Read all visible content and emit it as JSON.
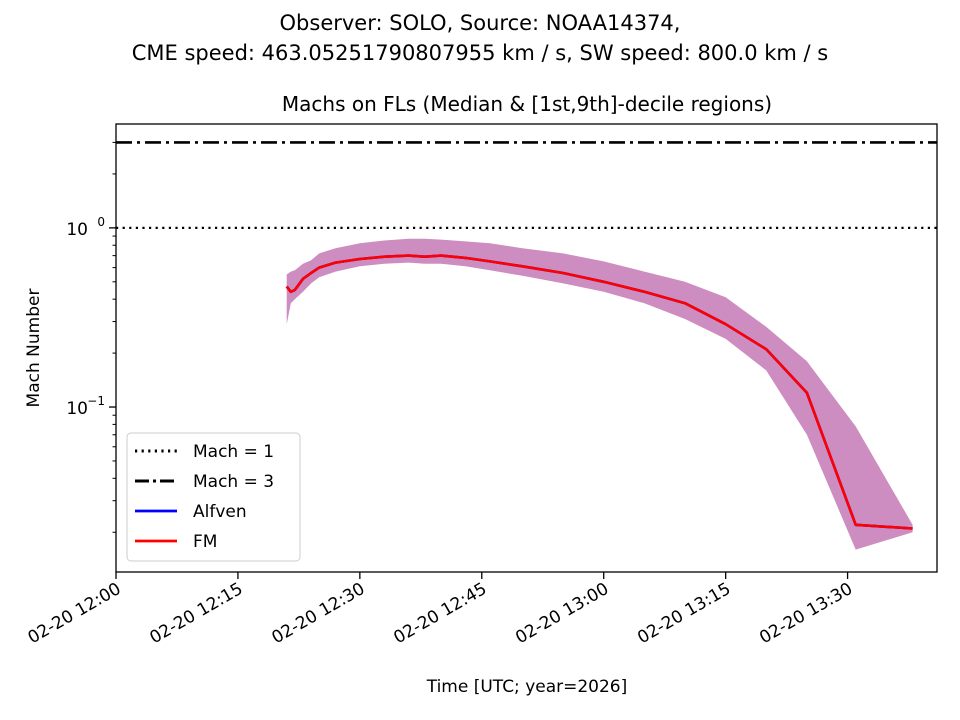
{
  "figure": {
    "suptitle_line1": "Observer: SOLO, Source: NOAA14374,",
    "suptitle_line2": "CME speed: 463.05251790807955 km / s, SW speed: 800.0 km / s"
  },
  "chart_data": {
    "type": "line",
    "title": "Machs on FLs (Median & [1st,9th]-decile regions)",
    "xlabel": "Time [UTC; year=2026]",
    "ylabel": "Mach Number",
    "yscale": "log",
    "ylim": [
      0.012,
      3.8
    ],
    "xlim": [
      "2026-02-20 12:00",
      "2026-02-20 13:41"
    ],
    "xticks": [
      "02-20 12:00",
      "02-20 12:15",
      "02-20 12:30",
      "02-20 12:45",
      "02-20 13:00",
      "02-20 13:15",
      "02-20 13:30"
    ],
    "yticks": [
      {
        "value": 1.0,
        "mantissa": "10",
        "exponent": "0"
      },
      {
        "value": 0.1,
        "mantissa": "10",
        "exponent": "−1"
      }
    ],
    "grid": false,
    "legend_position": "lower-left",
    "reference_lines": [
      {
        "name": "Mach = 1",
        "value": 1.0,
        "style": "dotted",
        "color": "#000000"
      },
      {
        "name": "Mach = 3",
        "value": 3.0,
        "style": "dashdot",
        "color": "#000000"
      }
    ],
    "x": [
      "12:21",
      "12:21.5",
      "12:22",
      "12:23",
      "12:24",
      "12:25",
      "12:27",
      "12:30",
      "12:33",
      "12:36",
      "12:38",
      "12:40",
      "12:43",
      "12:46",
      "12:50",
      "12:55",
      "13:00",
      "13:05",
      "13:10",
      "13:15",
      "13:20",
      "13:25",
      "13:31",
      "13:38"
    ],
    "series": [
      {
        "name": "Alfven",
        "color": "#0000ff",
        "median": [
          0.47,
          0.44,
          0.45,
          0.52,
          0.56,
          0.6,
          0.64,
          0.67,
          0.69,
          0.7,
          0.69,
          0.7,
          0.68,
          0.65,
          0.61,
          0.56,
          0.5,
          0.44,
          0.38,
          0.29,
          0.21,
          0.12,
          0.022,
          0.021
        ]
      },
      {
        "name": "FM",
        "color": "#ff0000",
        "median": [
          0.47,
          0.44,
          0.45,
          0.52,
          0.56,
          0.6,
          0.64,
          0.67,
          0.69,
          0.7,
          0.69,
          0.7,
          0.68,
          0.65,
          0.61,
          0.56,
          0.5,
          0.44,
          0.38,
          0.29,
          0.21,
          0.12,
          0.022,
          0.021
        ]
      }
    ],
    "decile_band": {
      "color": "#c070b0",
      "upper": [
        0.55,
        0.57,
        0.58,
        0.63,
        0.66,
        0.72,
        0.77,
        0.82,
        0.85,
        0.87,
        0.87,
        0.86,
        0.84,
        0.82,
        0.77,
        0.72,
        0.65,
        0.57,
        0.5,
        0.41,
        0.28,
        0.18,
        0.078,
        0.022
      ],
      "lower": [
        0.29,
        0.38,
        0.4,
        0.44,
        0.49,
        0.53,
        0.57,
        0.61,
        0.63,
        0.64,
        0.63,
        0.63,
        0.61,
        0.58,
        0.54,
        0.49,
        0.44,
        0.38,
        0.31,
        0.24,
        0.16,
        0.07,
        0.016,
        0.02
      ]
    },
    "legend": [
      "Mach = 1",
      "Mach = 3",
      "Alfven",
      "FM"
    ]
  }
}
